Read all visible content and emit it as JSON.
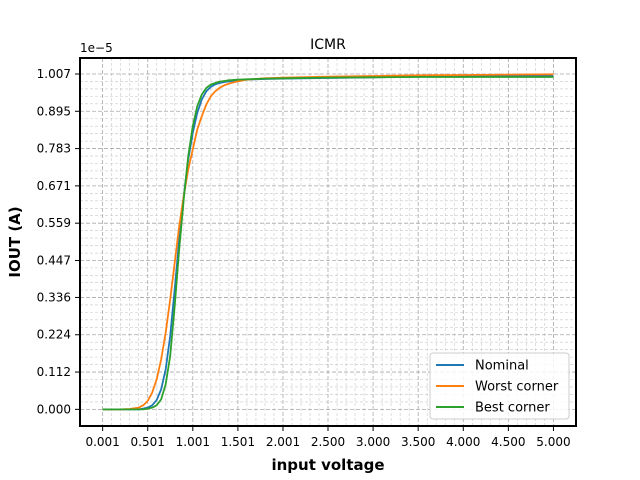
{
  "chart_data": {
    "type": "line",
    "title": "ICMR",
    "xlabel": "input voltage",
    "ylabel": "IOUT (A)",
    "y_offset_label": "1e−5",
    "xlim": [
      -0.25,
      5.25
    ],
    "ylim": [
      -0.05,
      1.055
    ],
    "grid": true,
    "grid_style": "dashed, major and minor",
    "legend_position": "lower right",
    "x_ticks": [
      0.001,
      0.501,
      1.001,
      1.501,
      2.001,
      2.5,
      3.0,
      3.5,
      4.0,
      4.5,
      5.0
    ],
    "x_tick_labels": [
      "0.001",
      "0.501",
      "1.001",
      "1.501",
      "2.001",
      "2.500",
      "3.000",
      "3.500",
      "4.000",
      "4.500",
      "5.000"
    ],
    "y_ticks": [
      0.0,
      0.112,
      0.224,
      0.336,
      0.447,
      0.559,
      0.671,
      0.783,
      0.895,
      1.007
    ],
    "y_tick_labels": [
      "0.000",
      "0.112",
      "0.224",
      "0.336",
      "0.447",
      "0.559",
      "0.671",
      "0.783",
      "0.895",
      "1.007"
    ],
    "x": [
      0.0,
      0.2,
      0.3,
      0.4,
      0.45,
      0.5,
      0.55,
      0.6,
      0.65,
      0.7,
      0.75,
      0.8,
      0.85,
      0.9,
      0.95,
      1.0,
      1.05,
      1.1,
      1.15,
      1.2,
      1.25,
      1.3,
      1.35,
      1.4,
      1.5,
      1.6,
      1.8,
      2.0,
      2.5,
      3.0,
      3.5,
      4.0,
      4.5,
      5.0
    ],
    "series": [
      {
        "name": "Nominal",
        "color": "#1f77b4",
        "values": [
          0.0,
          0.0,
          0.0,
          0.0,
          0.002,
          0.005,
          0.012,
          0.028,
          0.06,
          0.12,
          0.22,
          0.36,
          0.51,
          0.64,
          0.75,
          0.83,
          0.89,
          0.93,
          0.955,
          0.968,
          0.976,
          0.98,
          0.983,
          0.985,
          0.988,
          0.99,
          0.992,
          0.993,
          0.995,
          0.997,
          0.999,
          1.0,
          1.001,
          1.002
        ]
      },
      {
        "name": "Worst corner",
        "color": "#ff7f0e",
        "values": [
          0.0,
          0.0,
          0.001,
          0.005,
          0.012,
          0.025,
          0.05,
          0.09,
          0.15,
          0.23,
          0.33,
          0.44,
          0.55,
          0.64,
          0.72,
          0.78,
          0.84,
          0.88,
          0.915,
          0.94,
          0.955,
          0.966,
          0.973,
          0.978,
          0.985,
          0.99,
          0.994,
          0.996,
          0.999,
          1.001,
          1.003,
          1.004,
          1.005,
          1.006
        ]
      },
      {
        "name": "Best corner",
        "color": "#2ca02c",
        "values": [
          0.0,
          0.0,
          0.0,
          0.0,
          0.0,
          0.002,
          0.005,
          0.012,
          0.03,
          0.075,
          0.16,
          0.31,
          0.48,
          0.63,
          0.76,
          0.85,
          0.91,
          0.945,
          0.965,
          0.975,
          0.98,
          0.984,
          0.986,
          0.988,
          0.99,
          0.991,
          0.993,
          0.994,
          0.996,
          0.997,
          0.998,
          0.998,
          0.998,
          0.998
        ]
      }
    ]
  }
}
